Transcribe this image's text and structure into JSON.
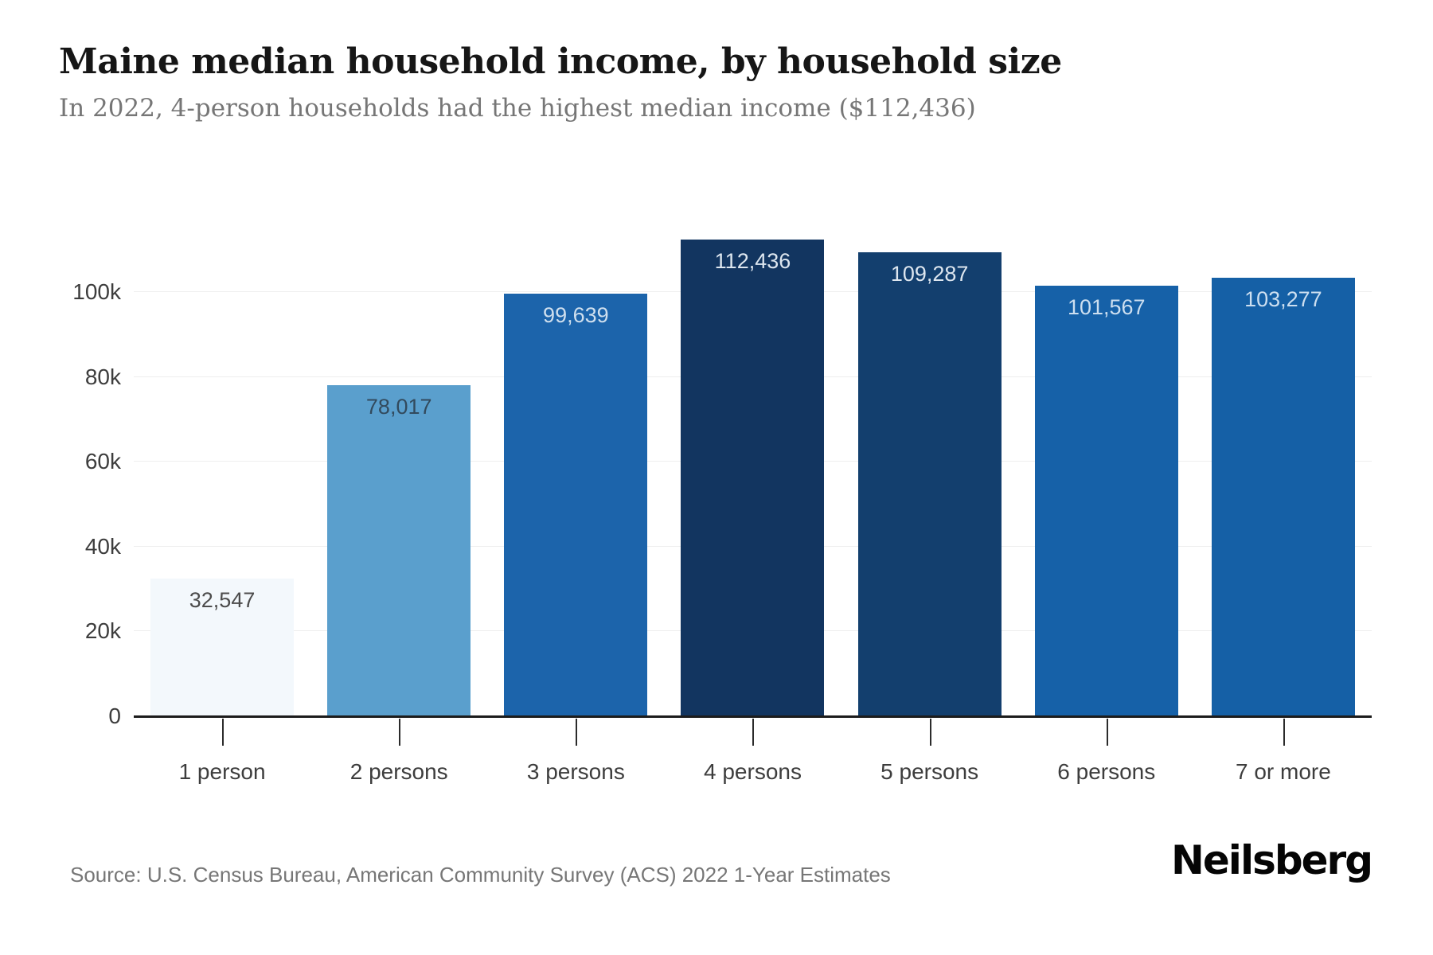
{
  "header": {
    "title": "Maine median household income, by household size",
    "subtitle": "In 2022, 4-person households had the highest median income ($112,436)"
  },
  "footer": {
    "source": "Source: U.S. Census Bureau, American Community Survey (ACS) 2022 1-Year Estimates",
    "logo": "Neilsberg"
  },
  "chart_data": {
    "type": "bar",
    "title": "Maine median household income, by household size",
    "subtitle": "In 2022, 4-person households had the highest median income ($112,436)",
    "categories": [
      "1 person",
      "2 persons",
      "3 persons",
      "4 persons",
      "5 persons",
      "6 persons",
      "7 or more"
    ],
    "values": [
      32547,
      78017,
      99639,
      112436,
      109287,
      101567,
      103277
    ],
    "value_labels": [
      "32,547",
      "78,017",
      "99,639",
      "112,436",
      "109,287",
      "101,567",
      "103,277"
    ],
    "bar_colors": [
      "#f3f8fc",
      "#5a9fcd",
      "#1c64ab",
      "#123560",
      "#133f6e",
      "#1661a8",
      "#1560a6"
    ],
    "value_label_colors": [
      "#4c4c4c",
      "#324a5d",
      "#cfdfee",
      "#dde6ef",
      "#dde6ef",
      "#cddff0",
      "#cddff0"
    ],
    "yticks": [
      {
        "value": 0,
        "label": "0"
      },
      {
        "value": 20000,
        "label": "20k"
      },
      {
        "value": 40000,
        "label": "40k"
      },
      {
        "value": 60000,
        "label": "60k"
      },
      {
        "value": 80000,
        "label": "80k"
      },
      {
        "value": 100000,
        "label": "100k"
      }
    ],
    "ylim": [
      0,
      121000
    ],
    "xlabel": "",
    "ylabel": "",
    "grid": "horizontal",
    "legend": "none"
  }
}
